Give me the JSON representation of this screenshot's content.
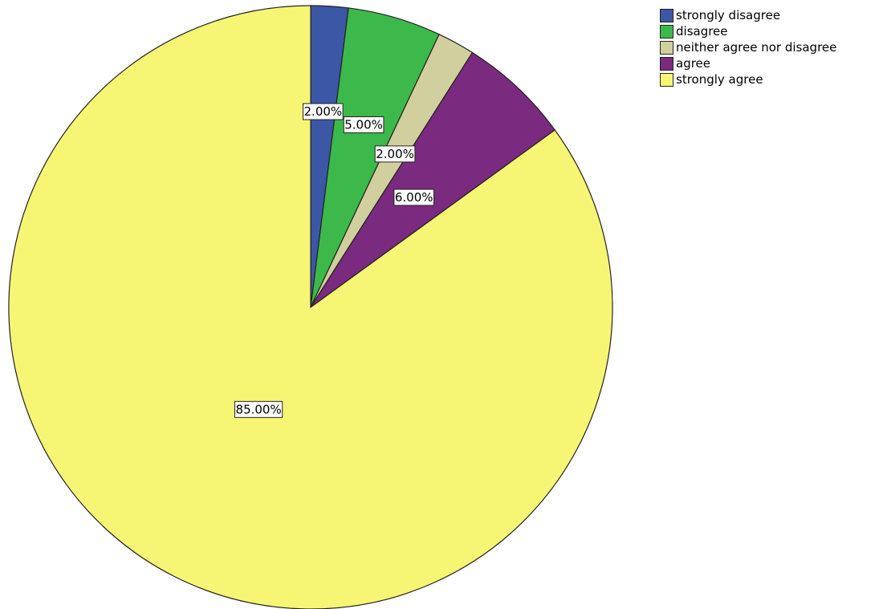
{
  "chart_data": {
    "type": "pie",
    "slices": [
      {
        "label": "strongly disagree",
        "value": 2.0,
        "value_label": "2.00%",
        "color": "#3c57a6"
      },
      {
        "label": "disagree",
        "value": 5.0,
        "value_label": "5.00%",
        "color": "#3cb94a"
      },
      {
        "label": "neither agree nor disagree",
        "value": 2.0,
        "value_label": "2.00%",
        "color": "#d2cf9e"
      },
      {
        "label": "agree",
        "value": 6.0,
        "value_label": "6.00%",
        "color": "#7a2a7f"
      },
      {
        "label": "strongly agree",
        "value": 85.0,
        "value_label": "85.00%",
        "color": "#f7f574"
      }
    ],
    "start_angle": "12 o'clock",
    "direction": "clockwise",
    "legend_position": "top-right"
  }
}
